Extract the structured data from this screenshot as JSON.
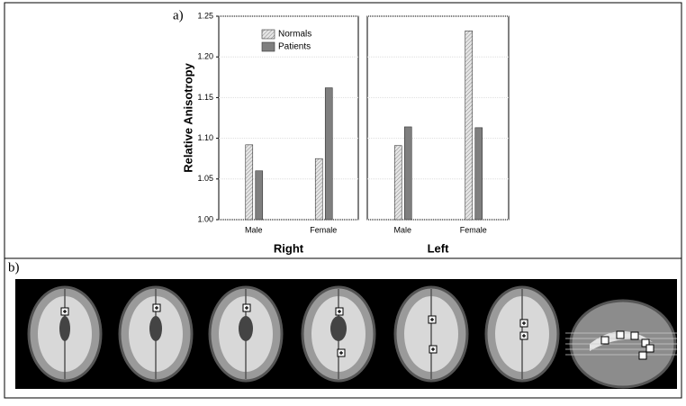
{
  "chart_data": {
    "type": "bar",
    "panel_label": "a)",
    "ylabel": "Relative Anisotropy",
    "ylim": [
      1.0,
      1.25
    ],
    "yticks": [
      {
        "value": 1.0,
        "label": "1.00"
      },
      {
        "value": 1.05,
        "label": "1.05"
      },
      {
        "value": 1.1,
        "label": "1.10"
      },
      {
        "value": 1.15,
        "label": "1.15"
      },
      {
        "value": 1.2,
        "label": "1.20"
      },
      {
        "value": 1.25,
        "label": "1.25"
      }
    ],
    "grid": true,
    "legend": "upper left",
    "series": [
      {
        "name": "Normals",
        "color": "#d9d9d9",
        "pattern": "hatch"
      },
      {
        "name": "Patients",
        "color": "#7f7f7f"
      }
    ],
    "facets": [
      {
        "title": "Right",
        "categories": [
          "Male",
          "Female"
        ],
        "values": [
          [
            1.092,
            1.075
          ],
          [
            1.06,
            1.162
          ]
        ]
      },
      {
        "title": "Left",
        "categories": [
          "Male",
          "Female"
        ],
        "values": [
          [
            1.091,
            1.232
          ],
          [
            1.114,
            1.113
          ]
        ]
      }
    ]
  },
  "panel_b": {
    "label": "b)"
  }
}
